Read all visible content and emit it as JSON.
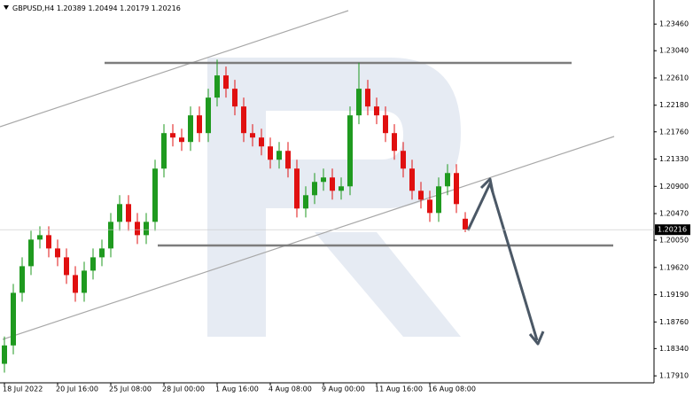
{
  "chart_data": {
    "type": "candlestick",
    "symbol": "GBPUSD,H4",
    "categories": [
      "18 Jul 2022",
      null,
      null,
      null,
      null,
      null,
      "20 Jul 16:00",
      null,
      null,
      null,
      null,
      null,
      "25 Jul 08:00",
      null,
      null,
      null,
      null,
      null,
      "28 Jul 00:00",
      null,
      null,
      null,
      null,
      null,
      "1 Aug 16:00",
      null,
      null,
      null,
      null,
      null,
      "4 Aug 08:00",
      null,
      null,
      null,
      null,
      null,
      "9 Aug 00:00",
      null,
      null,
      null,
      null,
      null,
      "11 Aug 16:00",
      null,
      null,
      null,
      null,
      null,
      "16 Aug 08:00",
      null,
      null,
      null,
      null
    ],
    "open": [
      1.181,
      1.1839,
      1.1922,
      1.1964,
      1.2006,
      1.2013,
      1.1992,
      1.1978,
      1.195,
      1.1922,
      1.1957,
      1.1978,
      1.1992,
      1.2034,
      1.2062,
      1.2034,
      1.2013,
      1.2034,
      1.2118,
      1.2174,
      1.2167,
      1.216,
      1.2202,
      1.2174,
      1.223,
      1.2265,
      1.2244,
      1.2216,
      1.2174,
      1.2167,
      1.2153,
      1.2132,
      1.2146,
      1.2118,
      1.2055,
      1.2076,
      1.2097,
      1.2104,
      1.2083,
      1.209,
      1.2202,
      1.2244,
      1.2216,
      1.2202,
      1.2174,
      1.2146,
      1.2118,
      1.2083,
      1.2069,
      1.2048,
      1.209,
      1.2111,
      1.20389
    ],
    "high": [
      1.1853,
      1.1936,
      1.1978,
      1.202,
      1.2027,
      1.2027,
      1.2006,
      1.1992,
      1.1964,
      1.1971,
      1.1992,
      1.2006,
      1.2048,
      1.2076,
      1.2076,
      1.2048,
      1.2048,
      1.2132,
      1.2188,
      1.2188,
      1.2181,
      1.2216,
      1.2216,
      1.2244,
      1.229,
      1.2279,
      1.2258,
      1.223,
      1.2188,
      1.2181,
      1.2167,
      1.216,
      1.216,
      1.2132,
      1.209,
      1.2111,
      1.2118,
      1.2118,
      1.2104,
      1.2216,
      1.2285,
      1.2258,
      1.223,
      1.2216,
      1.2188,
      1.216,
      1.2132,
      1.2097,
      1.2083,
      1.2104,
      1.2125,
      1.2125,
      1.20494
    ],
    "low": [
      1.1796,
      1.1825,
      1.1908,
      1.195,
      1.1992,
      1.1978,
      1.1964,
      1.1936,
      1.1908,
      1.1908,
      1.1943,
      1.1964,
      1.1978,
      1.202,
      1.202,
      1.1999,
      1.1999,
      1.202,
      1.2104,
      1.2153,
      1.2146,
      1.2146,
      1.216,
      1.216,
      1.2216,
      1.223,
      1.2202,
      1.216,
      1.2153,
      1.2139,
      1.2118,
      1.2118,
      1.2104,
      1.2041,
      1.2041,
      1.2062,
      1.2083,
      1.2069,
      1.2069,
      1.2076,
      1.2188,
      1.2202,
      1.2188,
      1.216,
      1.2132,
      1.2104,
      1.2069,
      1.2055,
      1.2034,
      1.2034,
      1.2076,
      1.2048,
      1.20179
    ],
    "close": [
      1.1839,
      1.1922,
      1.1964,
      1.2006,
      1.2013,
      1.1992,
      1.1978,
      1.195,
      1.1922,
      1.1957,
      1.1978,
      1.1992,
      1.2034,
      1.2062,
      1.2034,
      1.2013,
      1.2034,
      1.2118,
      1.2174,
      1.2167,
      1.216,
      1.2202,
      1.2174,
      1.223,
      1.2265,
      1.2244,
      1.2216,
      1.2174,
      1.2167,
      1.2153,
      1.2132,
      1.2146,
      1.2118,
      1.2055,
      1.2076,
      1.2097,
      1.2104,
      1.2083,
      1.209,
      1.2202,
      1.2244,
      1.2216,
      1.2202,
      1.2174,
      1.2146,
      1.2118,
      1.2083,
      1.2069,
      1.2048,
      1.209,
      1.2111,
      1.2062,
      1.20216
    ],
    "up_color": "#1f9a1f",
    "down_color": "#e01010",
    "ylim": [
      1.178,
      1.2384
    ],
    "yticks": [
      {
        "value": 1.2346,
        "label": "1.23460"
      },
      {
        "value": 1.2304,
        "label": "1.23040"
      },
      {
        "value": 1.2261,
        "label": "1.22610"
      },
      {
        "value": 1.2218,
        "label": "1.22180"
      },
      {
        "value": 1.2176,
        "label": "1.21760"
      },
      {
        "value": 1.2133,
        "label": "1.21330"
      },
      {
        "value": 1.209,
        "label": "1.20900"
      },
      {
        "value": 1.2047,
        "label": "1.20470"
      },
      {
        "value": 1.2005,
        "label": "1.20050"
      },
      {
        "value": 1.1962,
        "label": "1.19620"
      },
      {
        "value": 1.1919,
        "label": "1.19190"
      },
      {
        "value": 1.1876,
        "label": "1.18760"
      },
      {
        "value": 1.1834,
        "label": "1.18340"
      },
      {
        "value": 1.1791,
        "label": "1.17910"
      }
    ]
  }
}
